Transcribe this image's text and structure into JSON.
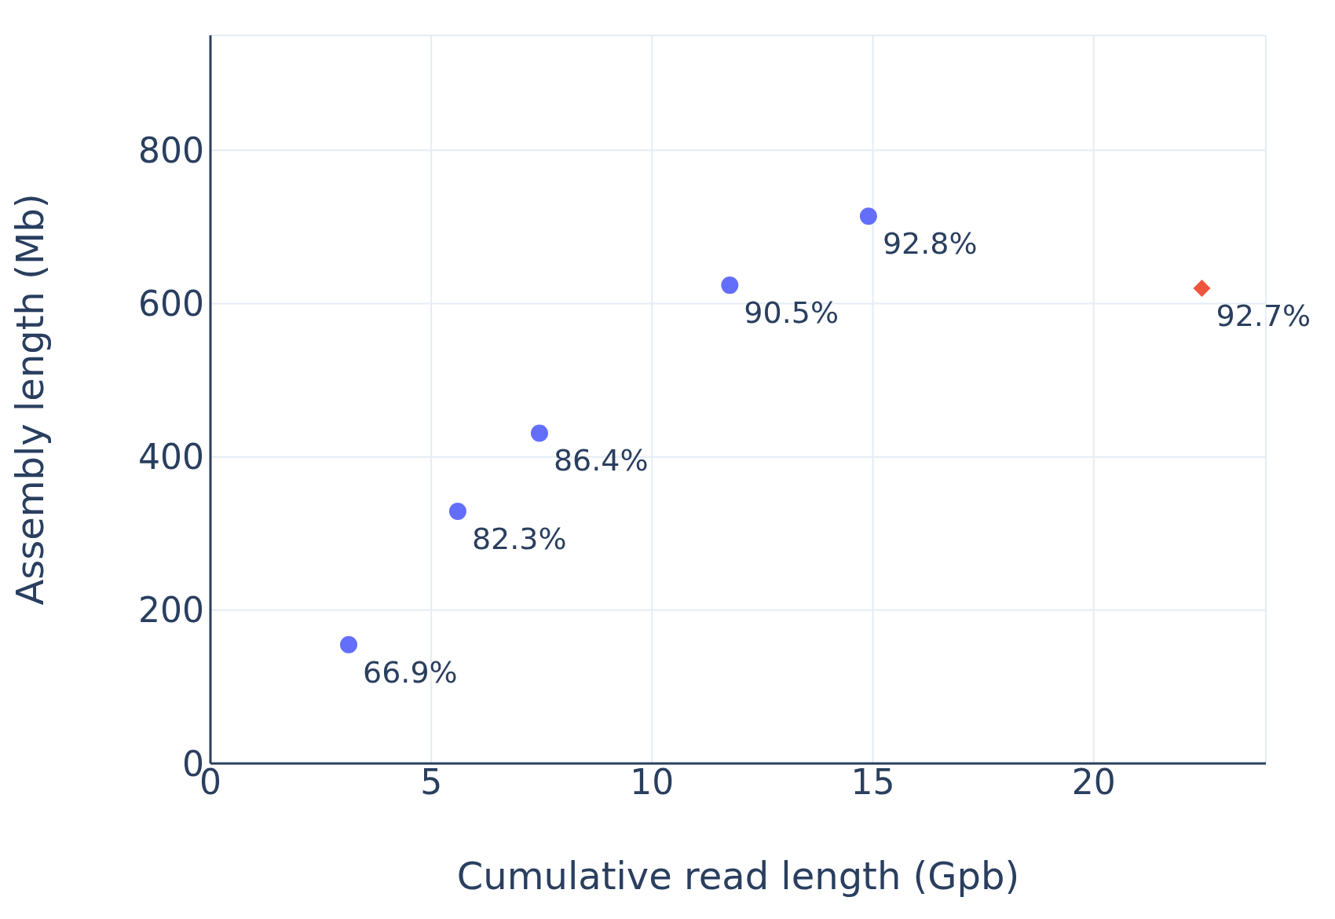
{
  "chart_data": {
    "type": "scatter",
    "xlabel": "Cumulative read length (Gpb)",
    "ylabel": "Assembly length (Mb)",
    "xlim": [
      0,
      23.9
    ],
    "xticks": [
      0,
      5,
      10,
      15,
      20
    ],
    "ylim": [
      0,
      950
    ],
    "yticks": [
      0,
      200,
      400,
      600,
      800
    ],
    "grid": true,
    "legend": false,
    "series": [
      {
        "color": "#636efa",
        "marker": "circle",
        "x": [
          3.13,
          5.6,
          7.45,
          11.76,
          14.9
        ],
        "values": [
          155,
          329,
          431,
          624,
          714
        ]
      },
      {
        "color": "#ef553b",
        "marker": "diamond",
        "x": [
          22.45
        ],
        "values": [
          620
        ]
      }
    ],
    "annotations": [
      {
        "text": "66.9%",
        "x": 3.13,
        "y": 155
      },
      {
        "text": "82.3%",
        "x": 5.6,
        "y": 329
      },
      {
        "text": "86.4%",
        "x": 7.45,
        "y": 431
      },
      {
        "text": "90.5%",
        "x": 11.76,
        "y": 624
      },
      {
        "text": "92.8%",
        "x": 14.9,
        "y": 714
      },
      {
        "text": "92.7%",
        "x": 22.45,
        "y": 620
      }
    ]
  }
}
